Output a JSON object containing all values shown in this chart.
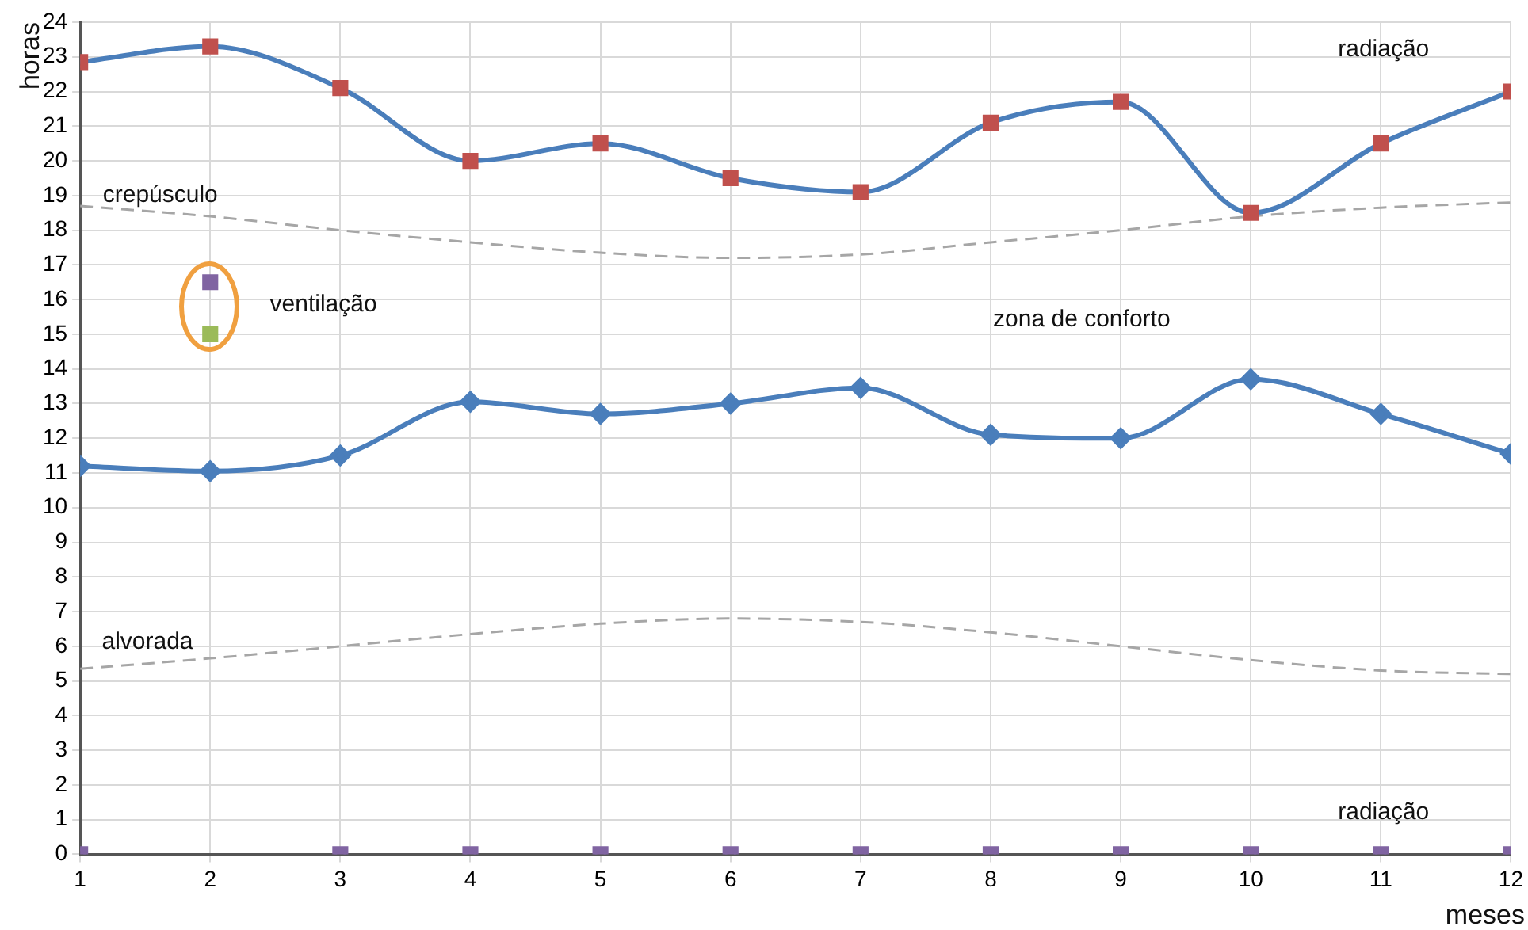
{
  "chart_data": {
    "type": "line",
    "xlabel": "meses",
    "ylabel": "horas",
    "x": [
      1,
      2,
      3,
      4,
      5,
      6,
      7,
      8,
      9,
      10,
      11,
      12
    ],
    "xlim": [
      1,
      12
    ],
    "xticks": [
      1,
      2,
      3,
      4,
      5,
      6,
      7,
      8,
      9,
      10,
      11,
      12
    ],
    "ylim": [
      0,
      24
    ],
    "yticks": [
      0,
      1,
      2,
      3,
      4,
      5,
      6,
      7,
      8,
      9,
      10,
      11,
      12,
      13,
      14,
      15,
      16,
      17,
      18,
      19,
      20,
      21,
      22,
      23,
      24
    ],
    "grid": true,
    "legend": false,
    "series": [
      {
        "color": "#4a7ebb",
        "marker": "square",
        "colors": [
          "#c0504d",
          "#c0504d",
          "#c0504d",
          "#c0504d",
          "#c0504d",
          "#c0504d",
          "#c0504d",
          "#c0504d",
          "#c0504d",
          "#c0504d",
          "#c0504d",
          "#c0504d"
        ],
        "values": [
          22.85,
          23.3,
          22.1,
          20.0,
          20.5,
          19.5,
          19.1,
          21.1,
          21.7,
          18.5,
          20.5,
          22.0
        ]
      },
      {
        "color": "#4a7ebb",
        "marker": "diamond",
        "values": [
          11.2,
          11.05,
          11.5,
          13.05,
          12.7,
          13.0,
          13.45,
          12.1,
          12.0,
          13.7,
          12.7,
          11.55
        ]
      },
      {
        "color": "#a6a6a6",
        "marker": "none",
        "line_style": "dashed",
        "values": [
          18.7,
          18.4,
          18.0,
          17.65,
          17.35,
          17.2,
          17.3,
          17.65,
          18.0,
          18.4,
          18.65,
          18.8
        ]
      },
      {
        "color": "#a6a6a6",
        "marker": "none",
        "line_style": "dashed",
        "values": [
          5.35,
          5.65,
          6.0,
          6.35,
          6.65,
          6.8,
          6.7,
          6.4,
          6.0,
          5.6,
          5.3,
          5.2
        ]
      },
      {
        "type": "scatter",
        "color": "#8064a2",
        "marker": "square",
        "values": [
          0,
          16.5,
          0,
          0,
          0,
          0,
          0,
          0,
          0,
          0,
          0,
          0
        ]
      },
      {
        "type": "scatter",
        "color": "#9bbb59",
        "marker": "square",
        "x": [
          2
        ],
        "values": [
          15.0
        ]
      }
    ],
    "annotations": [
      "radiação",
      "radiação",
      "crepúsculo",
      "alvorada",
      "ventilação",
      "zona de conforto"
    ]
  }
}
